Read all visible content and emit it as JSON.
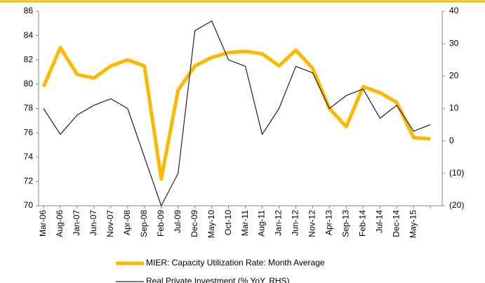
{
  "chart_data": {
    "type": "line",
    "categories": [
      "Mar-06",
      "Aug-06",
      "Jan-07",
      "Jun-07",
      "Nov-07",
      "Apr-08",
      "Sep-08",
      "Feb-09",
      "Jul-09",
      "Dec-09",
      "May-10",
      "Oct-10",
      "Mar-11",
      "Aug-11",
      "Jan-12",
      "Jun-12",
      "Nov-12",
      "Apr-13",
      "Sep-13",
      "Feb-14",
      "Jul-14",
      "Dec-14",
      "May-15",
      null
    ],
    "series": [
      {
        "name": "MIER: Capacity Utilization Rate: Month Average",
        "color": "#ffb800",
        "values": [
          79.8,
          83.0,
          80.8,
          80.5,
          81.5,
          82.0,
          81.5,
          72.2,
          79.5,
          81.5,
          82.2,
          82.6,
          82.7,
          82.5,
          81.5,
          82.8,
          81.3,
          78.0,
          76.5,
          79.8,
          79.3,
          78.5,
          75.6,
          75.5
        ]
      },
      {
        "name": "Real Private Investment (% YoY, RHS)",
        "color": "#222222",
        "axis": "y2",
        "values": [
          10,
          2,
          8,
          11,
          13,
          10,
          -5,
          -20,
          -10,
          34,
          37,
          25,
          23,
          2,
          10,
          23,
          21,
          10,
          14,
          16,
          7,
          11,
          3,
          5
        ]
      }
    ],
    "ylim": [
      70,
      86
    ],
    "yticks": [
      70,
      72,
      74,
      76,
      78,
      80,
      82,
      84,
      86
    ],
    "y2lim": [
      -20,
      40
    ],
    "y2ticks": [
      {
        "value": -20,
        "label": "(20)"
      },
      {
        "value": -10,
        "label": "(10)"
      },
      0,
      10,
      20,
      30,
      40
    ],
    "y2_negative_label_color": "#ff0000",
    "grid": false,
    "legend": "bottom"
  }
}
